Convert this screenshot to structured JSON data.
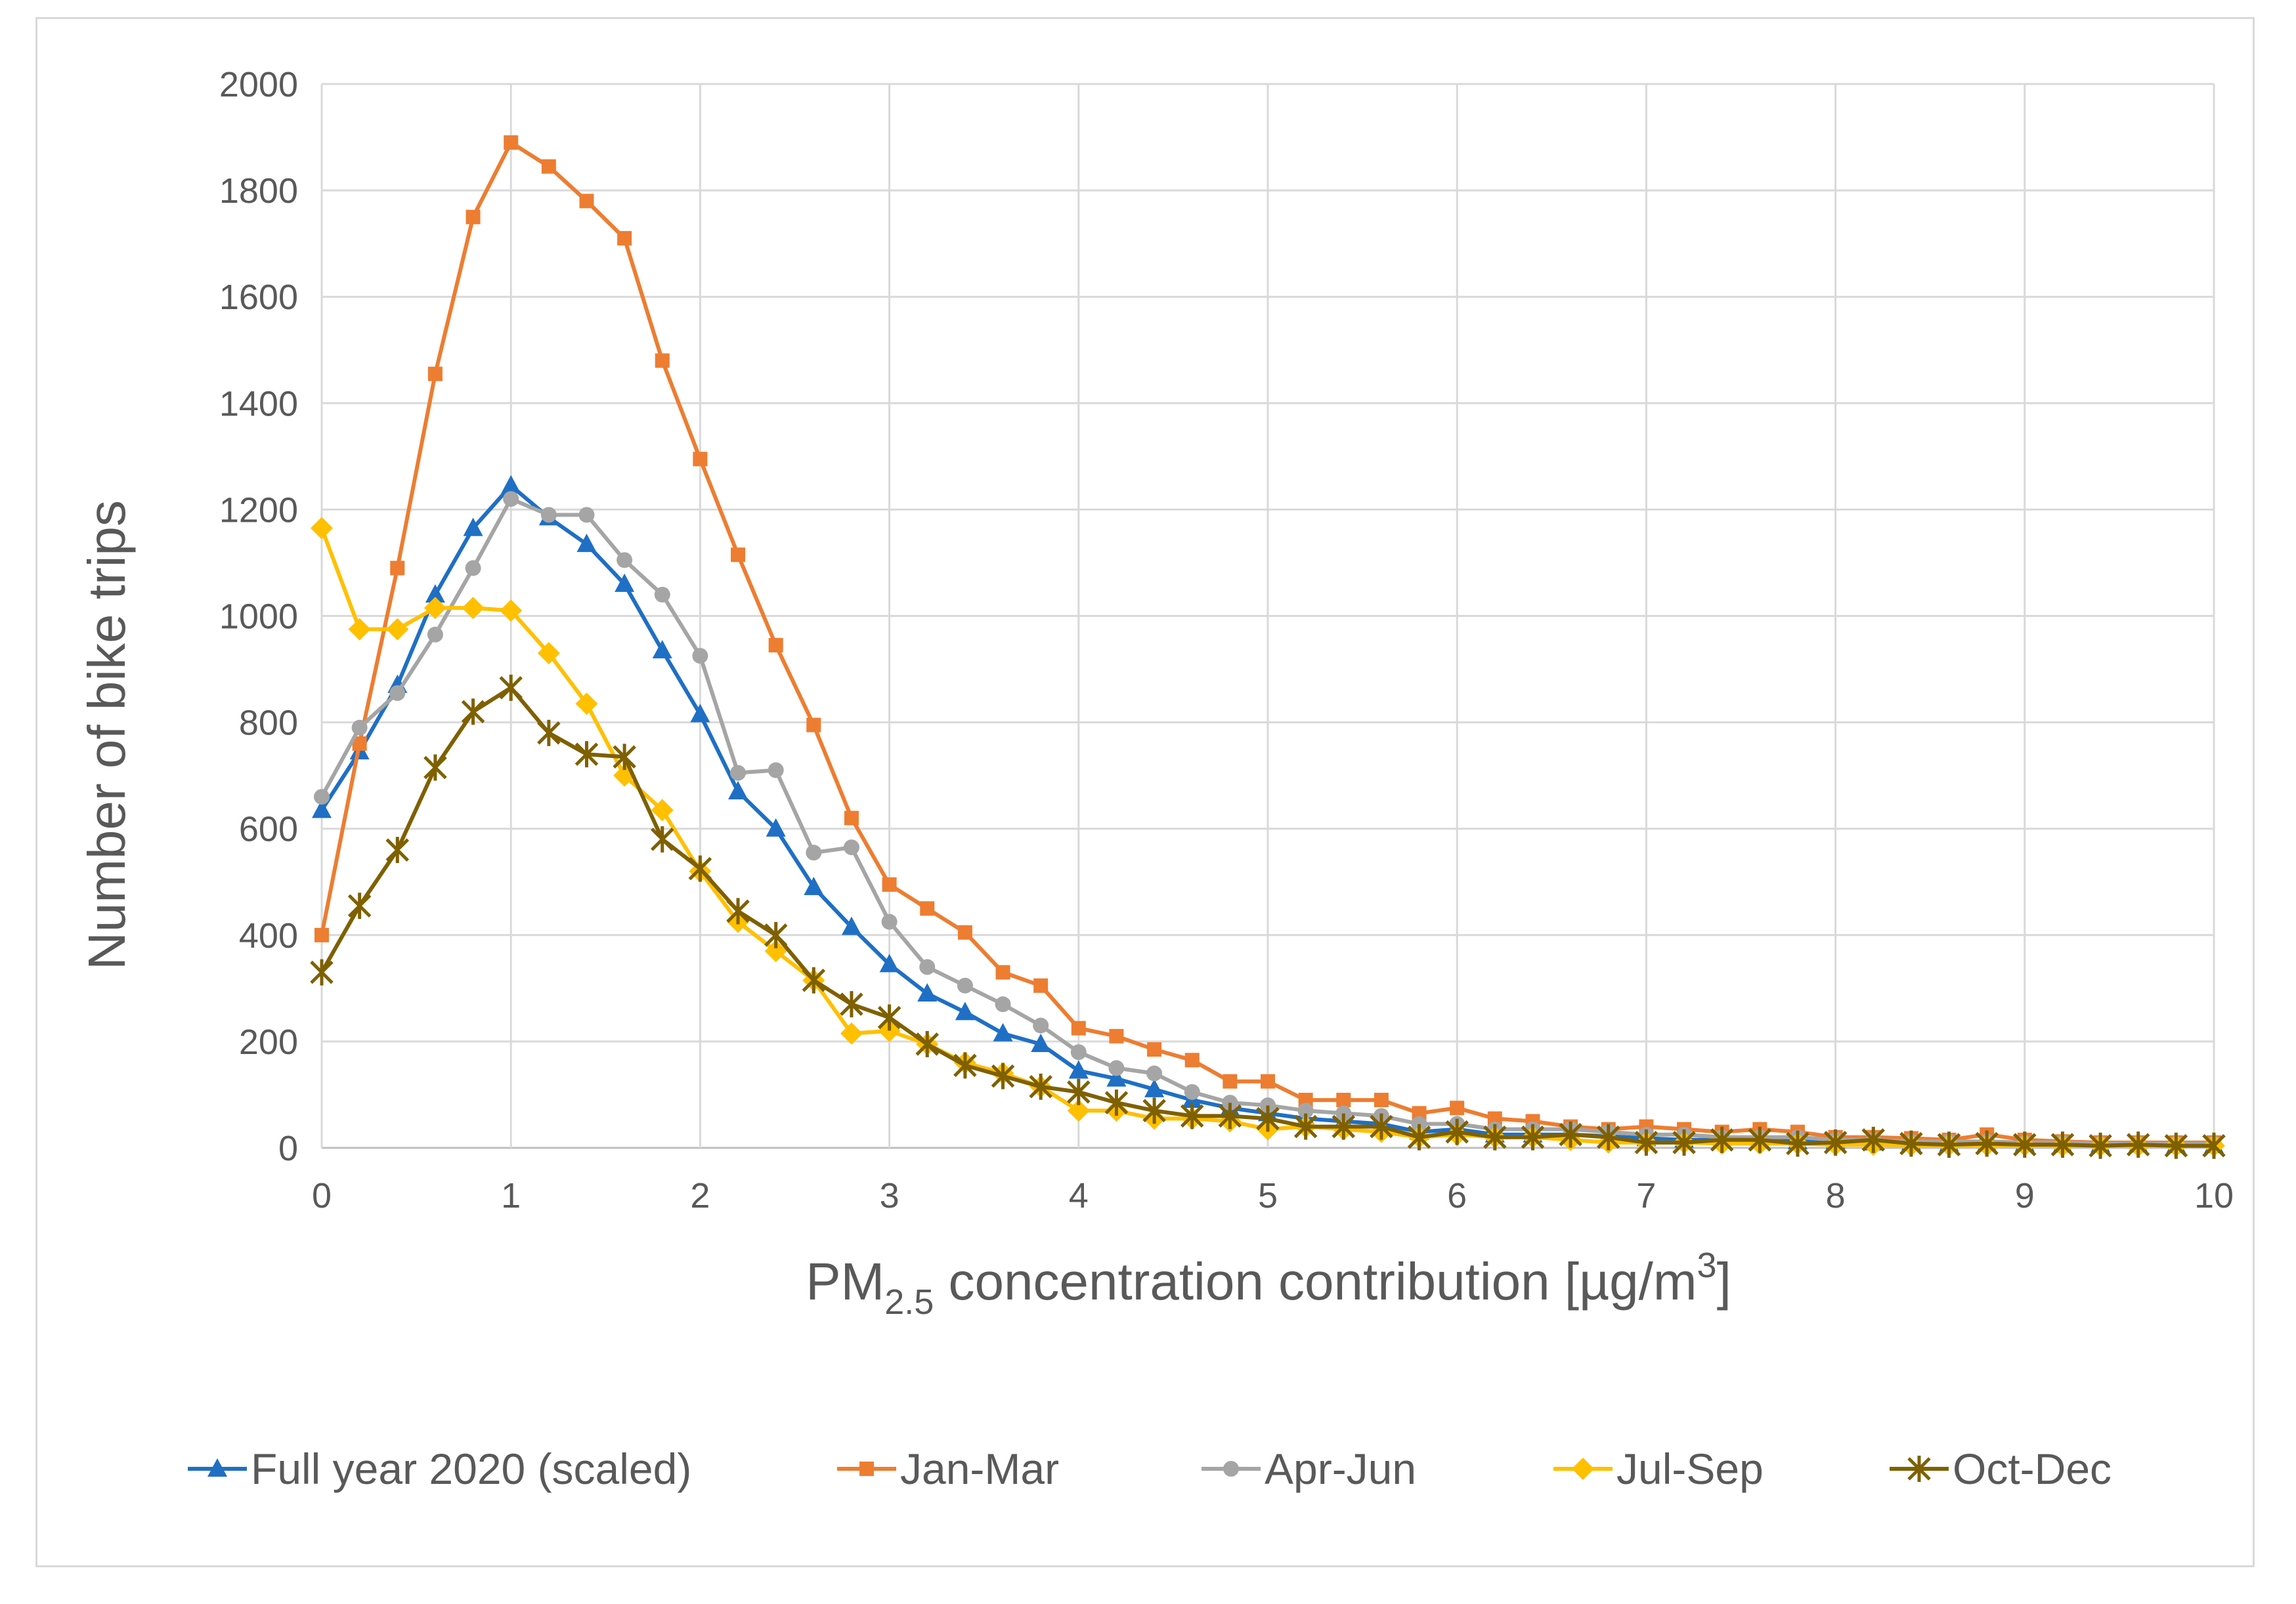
{
  "chart_data": {
    "type": "line",
    "title": "",
    "xlabel": {
      "main": "PM",
      "sub": "2.5",
      "rest": " concentration contribution [µg/m",
      "sup": "3",
      "end": "]"
    },
    "ylabel": "Number of bike trips",
    "xlim": [
      0,
      10
    ],
    "ylim": [
      0,
      2000
    ],
    "x_ticks": [
      "0",
      "1",
      "2",
      "3",
      "4",
      "5",
      "6",
      "7",
      "8",
      "9",
      "10"
    ],
    "y_ticks": [
      "0",
      "200",
      "400",
      "600",
      "800",
      "1000",
      "1200",
      "1400",
      "1600",
      "1800",
      "2000"
    ],
    "grid": true,
    "legend_position": "bottom",
    "x": [
      0,
      0.2,
      0.4,
      0.6,
      0.8,
      1.0,
      1.2,
      1.4,
      1.6,
      1.8,
      2.0,
      2.2,
      2.4,
      2.6,
      2.8,
      3.0,
      3.2,
      3.4,
      3.6,
      3.8,
      4.0,
      4.2,
      4.4,
      4.6,
      4.8,
      5.0,
      5.2,
      5.4,
      5.6,
      5.8,
      6.0,
      6.2,
      6.4,
      6.6,
      6.8,
      7.0,
      7.2,
      7.4,
      7.6,
      7.8,
      8.0,
      8.2,
      8.4,
      8.6,
      8.8,
      9.0,
      9.2,
      9.4,
      9.6,
      9.8,
      10.0
    ],
    "series": [
      {
        "name": "Full year 2020 (scaled)",
        "color": "#1f6fc5",
        "marker": "triangle",
        "values": [
          635,
          745,
          870,
          1040,
          1165,
          1245,
          1185,
          1135,
          1060,
          935,
          815,
          670,
          600,
          490,
          415,
          345,
          290,
          255,
          215,
          195,
          145,
          130,
          110,
          90,
          75,
          65,
          55,
          50,
          45,
          30,
          35,
          25,
          25,
          25,
          22,
          18,
          15,
          15,
          15,
          12,
          12,
          10,
          10,
          8,
          8,
          8,
          6,
          6,
          6,
          5,
          5
        ]
      },
      {
        "name": "Jan-Mar",
        "color": "#ed7d31",
        "marker": "square",
        "values": [
          400,
          760,
          1090,
          1455,
          1750,
          1890,
          1845,
          1780,
          1710,
          1480,
          1295,
          1115,
          945,
          795,
          620,
          495,
          450,
          405,
          330,
          305,
          225,
          210,
          185,
          165,
          125,
          125,
          90,
          90,
          90,
          65,
          75,
          55,
          50,
          40,
          35,
          40,
          35,
          30,
          35,
          30,
          20,
          20,
          18,
          15,
          25,
          15,
          12,
          10,
          10,
          10,
          10
        ]
      },
      {
        "name": "Apr-Jun",
        "color": "#a5a5a5",
        "marker": "circle",
        "values": [
          660,
          790,
          855,
          965,
          1090,
          1220,
          1190,
          1190,
          1105,
          1040,
          925,
          705,
          710,
          555,
          565,
          425,
          340,
          305,
          270,
          230,
          180,
          150,
          140,
          105,
          85,
          80,
          70,
          65,
          60,
          45,
          45,
          35,
          35,
          35,
          30,
          25,
          25,
          20,
          20,
          20,
          15,
          15,
          12,
          12,
          12,
          10,
          10,
          8,
          8,
          8,
          8
        ]
      },
      {
        "name": "Jul-Sep",
        "color": "#ffc000",
        "marker": "diamond",
        "values": [
          1165,
          975,
          975,
          1015,
          1015,
          1010,
          930,
          835,
          700,
          635,
          520,
          425,
          370,
          315,
          215,
          220,
          195,
          160,
          140,
          115,
          70,
          70,
          55,
          55,
          50,
          35,
          40,
          35,
          30,
          20,
          25,
          20,
          20,
          15,
          10,
          10,
          10,
          8,
          8,
          8,
          6,
          6,
          5,
          5,
          5,
          5,
          4,
          4,
          4,
          4,
          4
        ]
      },
      {
        "name": "Oct-Dec",
        "color": "#7f6000",
        "marker": "x-star",
        "values": [
          330,
          455,
          560,
          715,
          820,
          865,
          780,
          740,
          735,
          580,
          525,
          445,
          400,
          315,
          270,
          245,
          195,
          155,
          135,
          115,
          105,
          85,
          70,
          60,
          60,
          55,
          40,
          40,
          40,
          20,
          30,
          20,
          20,
          25,
          20,
          10,
          10,
          15,
          15,
          8,
          10,
          15,
          8,
          6,
          8,
          6,
          6,
          4,
          6,
          4,
          4
        ]
      }
    ]
  }
}
